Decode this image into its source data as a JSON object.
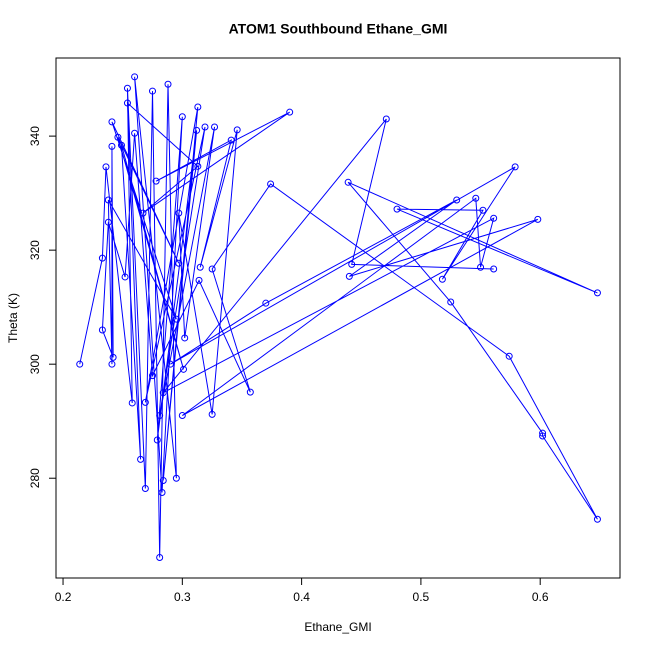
{
  "chart_data": {
    "type": "line",
    "title": "ATOM1 Southbound Ethane_GMI",
    "x_label": "Ethane_GMI",
    "y_label": "Theta (K)",
    "markers": true,
    "color": "#0000ff",
    "x": [
      0.214,
      0.233,
      0.236,
      0.258,
      0.254,
      0.269,
      0.275,
      0.281,
      0.288,
      0.295,
      0.26,
      0.283,
      0.3,
      0.279,
      0.312,
      0.284,
      0.313,
      0.269,
      0.319,
      0.281,
      0.327,
      0.302,
      0.297,
      0.325,
      0.346,
      0.315,
      0.341,
      0.278,
      0.39,
      0.267,
      0.313,
      0.254,
      0.265,
      0.249,
      0.301,
      0.246,
      0.297,
      0.241,
      0.295,
      0.238,
      0.241,
      0.241,
      0.242,
      0.233,
      0.238,
      0.252,
      0.26,
      0.275,
      0.314,
      0.357,
      0.325,
      0.374,
      0.574,
      0.648,
      0.602,
      0.602,
      0.525,
      0.439,
      0.648,
      0.48,
      0.552,
      0.518,
      0.579,
      0.29,
      0.37,
      0.53,
      0.44,
      0.598,
      0.3,
      0.546,
      0.55,
      0.561,
      0.284,
      0.471,
      0.442,
      0.561
    ],
    "values": [
      300.0,
      318.6,
      334.6,
      293.2,
      348.4,
      278.2,
      347.9,
      266.1,
      349.1,
      280.0,
      350.4,
      277.5,
      343.4,
      286.7,
      341.0,
      279.6,
      345.1,
      293.3,
      341.6,
      291.0,
      341.6,
      304.6,
      326.5,
      291.2,
      341.1,
      317.0,
      339.3,
      332.1,
      344.2,
      326.5,
      334.7,
      345.8,
      283.3,
      338.4,
      299.1,
      339.8,
      317.7,
      342.5,
      307.9,
      328.8,
      300.0,
      338.2,
      301.2,
      306.0,
      324.9,
      315.3,
      340.5,
      298.0,
      314.7,
      295.1,
      316.7,
      331.6,
      301.4,
      272.8,
      287.4,
      287.9,
      310.9,
      331.9,
      312.5,
      327.2,
      327.0,
      314.9,
      334.6,
      300.0,
      310.7,
      328.8,
      315.4,
      325.4,
      291.0,
      329.1,
      317.0,
      325.6,
      295.0,
      343.0,
      317.5,
      316.7
    ],
    "xlim": [
      0.1941,
      0.6669
    ],
    "ylim": [
      262.5,
      353.7
    ],
    "xticks": [
      0.2,
      0.3,
      0.4,
      0.5,
      0.6
    ],
    "yticks": [
      280,
      300,
      320,
      340
    ]
  }
}
